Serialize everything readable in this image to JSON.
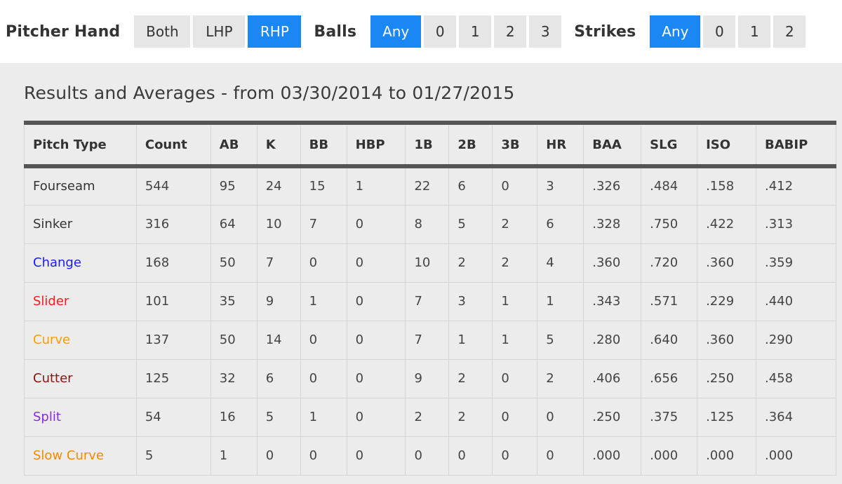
{
  "filters": {
    "pitcher_hand": {
      "label": "Pitcher Hand",
      "options": [
        "Both",
        "LHP",
        "RHP"
      ],
      "selected": "RHP"
    },
    "balls": {
      "label": "Balls",
      "options": [
        "Any",
        "0",
        "1",
        "2",
        "3"
      ],
      "selected": "Any"
    },
    "strikes": {
      "label": "Strikes",
      "options": [
        "Any",
        "0",
        "1",
        "2"
      ],
      "selected": "Any"
    }
  },
  "colors": {
    "active_button": "#1a87f5",
    "inactive_button": "#e6e6e6",
    "panel_background": "#ececec"
  },
  "results": {
    "title": "Results and Averages - from 03/30/2014 to 01/27/2015",
    "columns": [
      "Pitch Type",
      "Count",
      "AB",
      "K",
      "BB",
      "HBP",
      "1B",
      "2B",
      "3B",
      "HR",
      "BAA",
      "SLG",
      "ISO",
      "BABIP"
    ],
    "rows": [
      {
        "pitch_type": "Fourseam",
        "color": "#333333",
        "cells": [
          "544",
          "95",
          "24",
          "15",
          "1",
          "22",
          "6",
          "0",
          "3",
          ".326",
          ".484",
          ".158",
          ".412"
        ]
      },
      {
        "pitch_type": "Sinker",
        "color": "#333333",
        "cells": [
          "316",
          "64",
          "10",
          "7",
          "0",
          "8",
          "5",
          "2",
          "6",
          ".328",
          ".750",
          ".422",
          ".313"
        ]
      },
      {
        "pitch_type": "Change",
        "color": "#1a1aff",
        "cells": [
          "168",
          "50",
          "7",
          "0",
          "0",
          "10",
          "2",
          "2",
          "4",
          ".360",
          ".720",
          ".360",
          ".359"
        ]
      },
      {
        "pitch_type": "Slider",
        "color": "#ff1a1a",
        "cells": [
          "101",
          "35",
          "9",
          "1",
          "0",
          "7",
          "3",
          "1",
          "1",
          ".343",
          ".571",
          ".229",
          ".440"
        ]
      },
      {
        "pitch_type": "Curve",
        "color": "#f5a000",
        "cells": [
          "137",
          "50",
          "14",
          "0",
          "0",
          "7",
          "1",
          "1",
          "5",
          ".280",
          ".640",
          ".360",
          ".290"
        ]
      },
      {
        "pitch_type": "Cutter",
        "color": "#8b1010",
        "cells": [
          "125",
          "32",
          "6",
          "0",
          "0",
          "9",
          "2",
          "0",
          "2",
          ".406",
          ".656",
          ".250",
          ".458"
        ]
      },
      {
        "pitch_type": "Split",
        "color": "#8a2be2",
        "cells": [
          "54",
          "16",
          "5",
          "1",
          "0",
          "2",
          "2",
          "0",
          "0",
          ".250",
          ".375",
          ".125",
          ".364"
        ]
      },
      {
        "pitch_type": "Slow Curve",
        "color": "#f58a00",
        "cells": [
          "5",
          "1",
          "0",
          "0",
          "0",
          "0",
          "0",
          "0",
          "0",
          ".000",
          ".000",
          ".000",
          ".000"
        ]
      }
    ]
  }
}
